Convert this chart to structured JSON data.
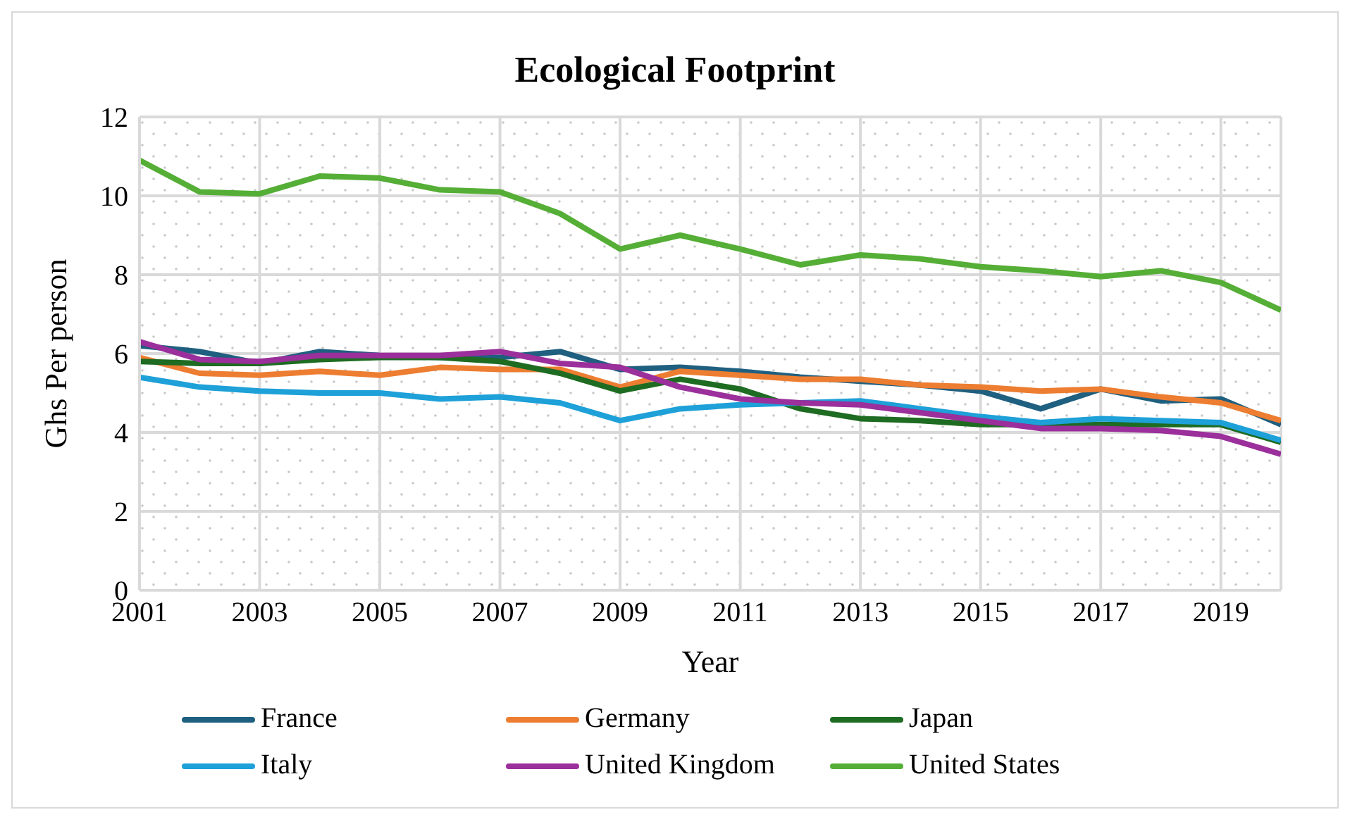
{
  "chart_data": {
    "type": "line",
    "title": "Ecological Footprint",
    "xlabel": "Year",
    "ylabel": "Ghs Per person",
    "x": [
      2001,
      2002,
      2003,
      2004,
      2005,
      2006,
      2007,
      2008,
      2009,
      2010,
      2011,
      2012,
      2013,
      2014,
      2015,
      2016,
      2017,
      2018,
      2019,
      2020
    ],
    "xlim": [
      2001,
      2020
    ],
    "xticks": [
      2001,
      2003,
      2005,
      2007,
      2009,
      2011,
      2013,
      2015,
      2017,
      2019
    ],
    "ylim": [
      0,
      12
    ],
    "yticks": [
      0,
      2,
      4,
      6,
      8,
      10,
      12
    ],
    "grid": true,
    "legend": "bottom",
    "marker": "none",
    "line_style": "solid",
    "series": [
      {
        "name": "France",
        "color": "#1f5f7f",
        "values": [
          6.2,
          6.05,
          5.75,
          6.05,
          5.95,
          5.9,
          5.9,
          6.05,
          5.6,
          5.65,
          5.55,
          5.4,
          5.3,
          5.2,
          5.05,
          4.6,
          5.1,
          4.8,
          4.85,
          4.2
        ]
      },
      {
        "name": "Germany",
        "color": "#ed7d31",
        "values": [
          5.9,
          5.5,
          5.45,
          5.55,
          5.45,
          5.65,
          5.6,
          5.6,
          5.15,
          5.55,
          5.45,
          5.35,
          5.35,
          5.2,
          5.15,
          5.05,
          5.1,
          4.9,
          4.75,
          4.3
        ]
      },
      {
        "name": "Japan",
        "color": "#1e6b22",
        "values": [
          5.8,
          5.75,
          5.75,
          5.85,
          5.9,
          5.9,
          5.8,
          5.5,
          5.05,
          5.35,
          5.1,
          4.6,
          4.35,
          4.3,
          4.2,
          4.2,
          4.2,
          4.2,
          4.2,
          3.75
        ]
      },
      {
        "name": "Italy",
        "color": "#1ea0d8",
        "values": [
          5.4,
          5.15,
          5.05,
          5.0,
          5.0,
          4.85,
          4.9,
          4.75,
          4.3,
          4.6,
          4.7,
          4.75,
          4.8,
          4.6,
          4.4,
          4.25,
          4.35,
          4.3,
          4.25,
          3.8
        ]
      },
      {
        "name": "United Kingdom",
        "color": "#9b2f9b",
        "values": [
          6.3,
          5.85,
          5.8,
          5.95,
          5.95,
          5.95,
          6.05,
          5.75,
          5.65,
          5.15,
          4.85,
          4.75,
          4.7,
          4.5,
          4.3,
          4.1,
          4.1,
          4.05,
          3.9,
          3.45
        ]
      },
      {
        "name": "United States",
        "color": "#55ae36",
        "values": [
          10.9,
          10.1,
          10.05,
          10.5,
          10.45,
          10.15,
          10.1,
          9.55,
          8.65,
          9.0,
          8.65,
          8.25,
          8.5,
          8.4,
          8.2,
          8.1,
          7.95,
          8.1,
          7.8,
          7.1
        ]
      }
    ]
  }
}
